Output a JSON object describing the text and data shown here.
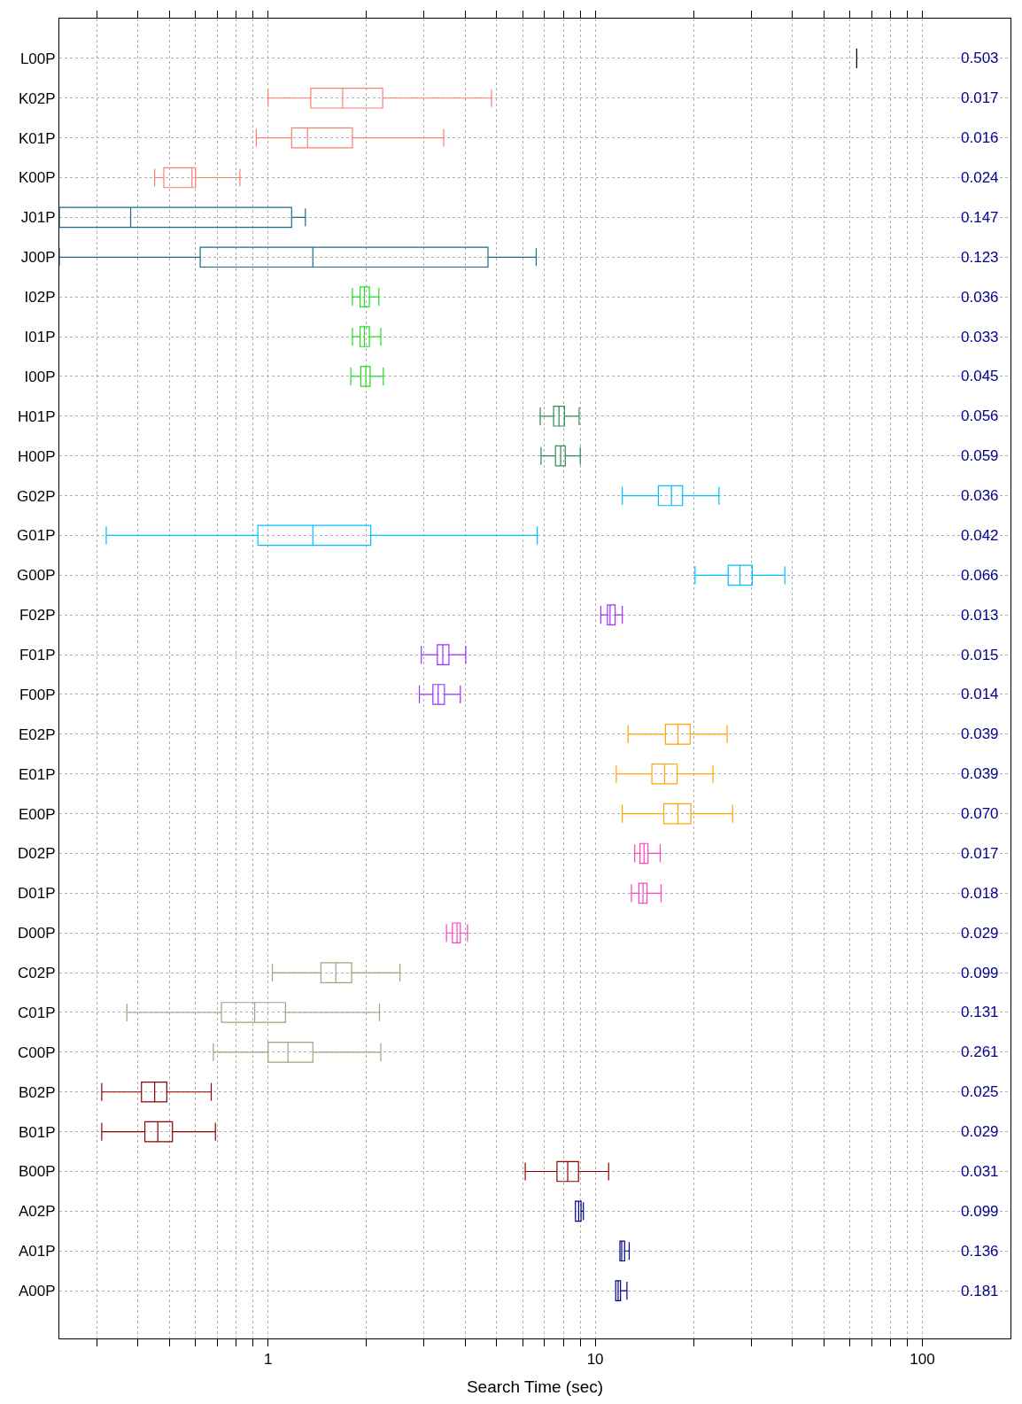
{
  "chart_data": {
    "type": "box",
    "orientation": "horizontal",
    "log": "x",
    "grid": true,
    "xlabel": "Search Time (sec)",
    "categories": [
      "L00P",
      "K02P",
      "K01P",
      "K00P",
      "J01P",
      "J00P",
      "I02P",
      "I01P",
      "I00P",
      "H01P",
      "H00P",
      "G02P",
      "G01P",
      "G00P",
      "F02P",
      "F01P",
      "F00P",
      "E02P",
      "E01P",
      "E00P",
      "D02P",
      "D01P",
      "D00P",
      "C02P",
      "C01P",
      "C00P",
      "B02P",
      "B01P",
      "B00P",
      "A02P",
      "A01P",
      "A00P"
    ],
    "colors": [
      "#000000",
      "#fa8072",
      "#fa8072",
      "#fa8072",
      "#1a6b8a",
      "#1a6b8a",
      "#22dd22",
      "#22dd22",
      "#22dd22",
      "#2e8b57",
      "#2e8b57",
      "#00bfff",
      "#00bfff",
      "#00bfff",
      "#9b30ff",
      "#9b30ff",
      "#9b30ff",
      "#ffa500",
      "#ffa500",
      "#ffa500",
      "#ff40c0",
      "#ff40c0",
      "#ff40c0",
      "#a89f80",
      "#a89f80",
      "#a89f80",
      "#8b0000",
      "#8b0000",
      "#8b0000",
      "#00008b",
      "#00008b",
      "#00008b"
    ],
    "boxes": [
      {
        "low": 63,
        "q1": 63,
        "median": 63,
        "q3": 63,
        "high": 63
      },
      {
        "low": 1.0,
        "q1": 1.35,
        "median": 1.69,
        "q3": 2.24,
        "high": 4.82
      },
      {
        "low": 0.92,
        "q1": 1.18,
        "median": 1.32,
        "q3": 1.81,
        "high": 3.44
      },
      {
        "low": 0.45,
        "q1": 0.48,
        "median": 0.585,
        "q3": 0.6,
        "high": 0.82
      },
      {
        "low": 0.23,
        "q1": 0.23,
        "median": 0.38,
        "q3": 1.18,
        "high": 1.3
      },
      {
        "low": 0.23,
        "q1": 0.62,
        "median": 1.37,
        "q3": 4.7,
        "high": 6.6
      },
      {
        "low": 1.81,
        "q1": 1.91,
        "median": 1.97,
        "q3": 2.04,
        "high": 2.18
      },
      {
        "low": 1.81,
        "q1": 1.91,
        "median": 1.97,
        "q3": 2.04,
        "high": 2.21
      },
      {
        "low": 1.79,
        "q1": 1.92,
        "median": 1.99,
        "q3": 2.05,
        "high": 2.25
      },
      {
        "low": 6.79,
        "q1": 7.46,
        "median": 7.75,
        "q3": 8.05,
        "high": 8.93
      },
      {
        "low": 6.83,
        "q1": 7.56,
        "median": 7.84,
        "q3": 8.1,
        "high": 9.0
      },
      {
        "low": 12.1,
        "q1": 15.6,
        "median": 17.1,
        "q3": 18.5,
        "high": 23.9
      },
      {
        "low": 0.32,
        "q1": 0.93,
        "median": 1.37,
        "q3": 2.06,
        "high": 6.65
      },
      {
        "low": 20.2,
        "q1": 25.5,
        "median": 27.7,
        "q3": 30.2,
        "high": 38.0
      },
      {
        "low": 10.4,
        "q1": 10.9,
        "median": 11.1,
        "q3": 11.5,
        "high": 12.1
      },
      {
        "low": 2.94,
        "q1": 3.29,
        "median": 3.42,
        "q3": 3.57,
        "high": 4.02
      },
      {
        "low": 2.9,
        "q1": 3.19,
        "median": 3.31,
        "q3": 3.46,
        "high": 3.87
      },
      {
        "low": 12.6,
        "q1": 16.4,
        "median": 17.9,
        "q3": 19.5,
        "high": 25.3
      },
      {
        "low": 11.6,
        "q1": 14.9,
        "median": 16.3,
        "q3": 17.8,
        "high": 22.9
      },
      {
        "low": 12.1,
        "q1": 16.2,
        "median": 17.9,
        "q3": 19.6,
        "high": 26.3
      },
      {
        "low": 13.2,
        "q1": 13.7,
        "median": 14.1,
        "q3": 14.5,
        "high": 15.8
      },
      {
        "low": 12.9,
        "q1": 13.6,
        "median": 14.0,
        "q3": 14.4,
        "high": 15.9
      },
      {
        "low": 3.51,
        "q1": 3.66,
        "median": 3.78,
        "q3": 3.87,
        "high": 4.07
      },
      {
        "low": 1.03,
        "q1": 1.45,
        "median": 1.61,
        "q3": 1.8,
        "high": 2.53
      },
      {
        "low": 0.37,
        "q1": 0.72,
        "median": 0.91,
        "q3": 1.13,
        "high": 2.19
      },
      {
        "low": 0.68,
        "q1": 1.0,
        "median": 1.15,
        "q3": 1.37,
        "high": 2.21
      },
      {
        "low": 0.31,
        "q1": 0.41,
        "median": 0.45,
        "q3": 0.49,
        "high": 0.67
      },
      {
        "low": 0.31,
        "q1": 0.42,
        "median": 0.46,
        "q3": 0.51,
        "high": 0.69
      },
      {
        "low": 6.11,
        "q1": 7.64,
        "median": 8.24,
        "q3": 8.89,
        "high": 10.99
      },
      {
        "low": 8.7,
        "q1": 8.7,
        "median": 8.9,
        "q3": 9.05,
        "high": 9.2
      },
      {
        "low": 11.9,
        "q1": 11.9,
        "median": 12.05,
        "q3": 12.3,
        "high": 12.7
      },
      {
        "low": 11.55,
        "q1": 11.55,
        "median": 11.75,
        "q3": 11.95,
        "high": 12.5
      }
    ],
    "xlim": [
      0.23,
      186
    ],
    "xticks": [
      {
        "value": 0.3,
        "label": null
      },
      {
        "value": 0.4,
        "label": null
      },
      {
        "value": 0.5,
        "label": null
      },
      {
        "value": 0.6,
        "label": null
      },
      {
        "value": 0.7,
        "label": null
      },
      {
        "value": 0.8,
        "label": null
      },
      {
        "value": 0.9,
        "label": null
      },
      1,
      {
        "value": 2,
        "label": null
      },
      {
        "value": 3,
        "label": null
      },
      {
        "value": 4,
        "label": null
      },
      {
        "value": 5,
        "label": null
      },
      {
        "value": 6,
        "label": null
      },
      {
        "value": 7,
        "label": null
      },
      {
        "value": 8,
        "label": null
      },
      {
        "value": 9,
        "label": null
      },
      10,
      {
        "value": 20,
        "label": null
      },
      {
        "value": 30,
        "label": null
      },
      {
        "value": 40,
        "label": null
      },
      {
        "value": 50,
        "label": null
      },
      {
        "value": 60,
        "label": null
      },
      {
        "value": 70,
        "label": null
      },
      {
        "value": 80,
        "label": null
      },
      {
        "value": 90,
        "label": null
      },
      100
    ],
    "annotations": [
      "0.503",
      "0.017",
      "0.016",
      "0.024",
      "0.147",
      "0.123",
      "0.036",
      "0.033",
      "0.045",
      "0.056",
      "0.059",
      "0.036",
      "0.042",
      "0.066",
      "0.013",
      "0.015",
      "0.014",
      "0.039",
      "0.039",
      "0.070",
      "0.017",
      "0.018",
      "0.029",
      "0.099",
      "0.131",
      "0.261",
      "0.025",
      "0.029",
      "0.031",
      "0.099",
      "0.136",
      "0.181"
    ]
  }
}
